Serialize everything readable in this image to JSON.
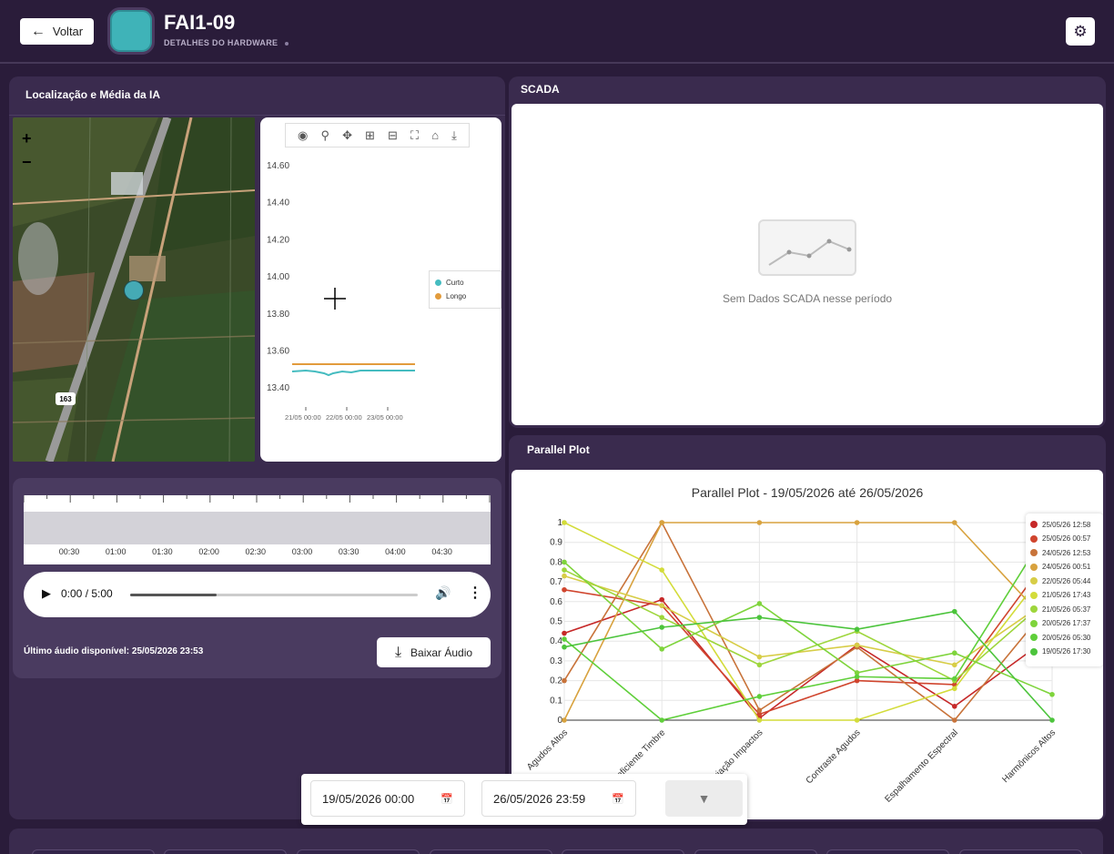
{
  "header": {
    "back_label": "Voltar",
    "title": "FAI1-09",
    "subtitle": "DETALHES DO HARDWARE"
  },
  "location_panel": {
    "title": "Localização e Média da IA",
    "map": {
      "zoom_in": "+",
      "zoom_out": "−",
      "road_shield": "163"
    },
    "mini_chart": {
      "modebar_icons": [
        "camera-icon",
        "zoom-icon",
        "pan-icon",
        "zoom-in-icon",
        "zoom-out-icon",
        "autoscale-icon",
        "home-icon",
        "download-icon"
      ],
      "y_ticks": [
        "14.60",
        "14.40",
        "14.20",
        "14.00",
        "13.80",
        "13.60",
        "13.40"
      ],
      "x_ticks": [
        "21/05 00:00",
        "22/05 00:00",
        "23/05 00:00"
      ],
      "legend": [
        {
          "name": "Curto",
          "color": "#45bcc0"
        },
        {
          "name": "Longo",
          "color": "#e29b3c"
        }
      ]
    }
  },
  "audio": {
    "timeline": [
      "00:30",
      "01:00",
      "01:30",
      "02:00",
      "02:30",
      "03:00",
      "03:30",
      "04:00",
      "04:30"
    ],
    "time_display": "0:00 / 5:00",
    "last_audio": "Último áudio disponível: 25/05/2026 23:53",
    "download_label": "Baixar Áudio",
    "progress_fraction": 0.3
  },
  "scada": {
    "title": "SCADA",
    "empty_message": "Sem Dados SCADA nesse período"
  },
  "parallel_plot": {
    "panel_title": "Parallel Plot"
  },
  "filters": {
    "start": "19/05/2026 00:00",
    "end": "26/05/2026 23:59"
  },
  "chart_data": {
    "type": "line",
    "title": "Parallel Plot - 19/05/2026 até 26/05/2026",
    "categories": [
      "Agudos Altos",
      "Coeficiente Timbre",
      "Variação Impactos",
      "Contraste Agudos",
      "Espalhamento Espectral",
      "Harmônicos Altos"
    ],
    "y_ticks": [
      "0",
      "0.1",
      "0.2",
      "0.3",
      "0.4",
      "0.5",
      "0.6",
      "0.7",
      "0.8",
      "0.9",
      "1"
    ],
    "ylim": [
      0,
      1
    ],
    "grid": true,
    "legend_position": "right",
    "series": [
      {
        "name": "25/05/26 12:58",
        "color": "#c62828",
        "values": [
          0.44,
          0.61,
          0.01,
          0.38,
          0.07,
          0.43
        ]
      },
      {
        "name": "25/05/26 00:57",
        "color": "#d0452e",
        "values": [
          0.66,
          0.58,
          0.03,
          0.2,
          0.18,
          0.85
        ]
      },
      {
        "name": "24/05/26 12:53",
        "color": "#c8733a",
        "values": [
          0.2,
          1.0,
          0.05,
          0.37,
          0.0,
          0.6
        ]
      },
      {
        "name": "24/05/26 00:51",
        "color": "#d8a23e",
        "values": [
          0.0,
          1.0,
          1.0,
          1.0,
          1.0,
          0.47
        ]
      },
      {
        "name": "22/05/26 05:44",
        "color": "#d7cd47",
        "values": [
          0.73,
          0.58,
          0.32,
          0.38,
          0.28,
          0.62
        ]
      },
      {
        "name": "21/05/26 17:43",
        "color": "#d3dc3a",
        "values": [
          1.0,
          0.76,
          0.0,
          0.0,
          0.16,
          0.8
        ]
      },
      {
        "name": "21/05/26 05:37",
        "color": "#9ed63c",
        "values": [
          0.76,
          0.52,
          0.28,
          0.45,
          0.2,
          0.63
        ]
      },
      {
        "name": "20/05/26 17:37",
        "color": "#7fd43c",
        "values": [
          0.8,
          0.36,
          0.59,
          0.24,
          0.34,
          0.13
        ]
      },
      {
        "name": "20/05/26 05:30",
        "color": "#5fcf3a",
        "values": [
          0.41,
          0.0,
          0.12,
          0.22,
          0.21,
          1.0
        ]
      },
      {
        "name": "19/05/26 17:30",
        "color": "#4cc43c",
        "values": [
          0.37,
          0.47,
          0.52,
          0.46,
          0.55,
          0.0
        ]
      }
    ]
  },
  "colors": {
    "background": "#2a1c3a",
    "panel": "#3a2b4e",
    "marker": "#45aab5"
  }
}
